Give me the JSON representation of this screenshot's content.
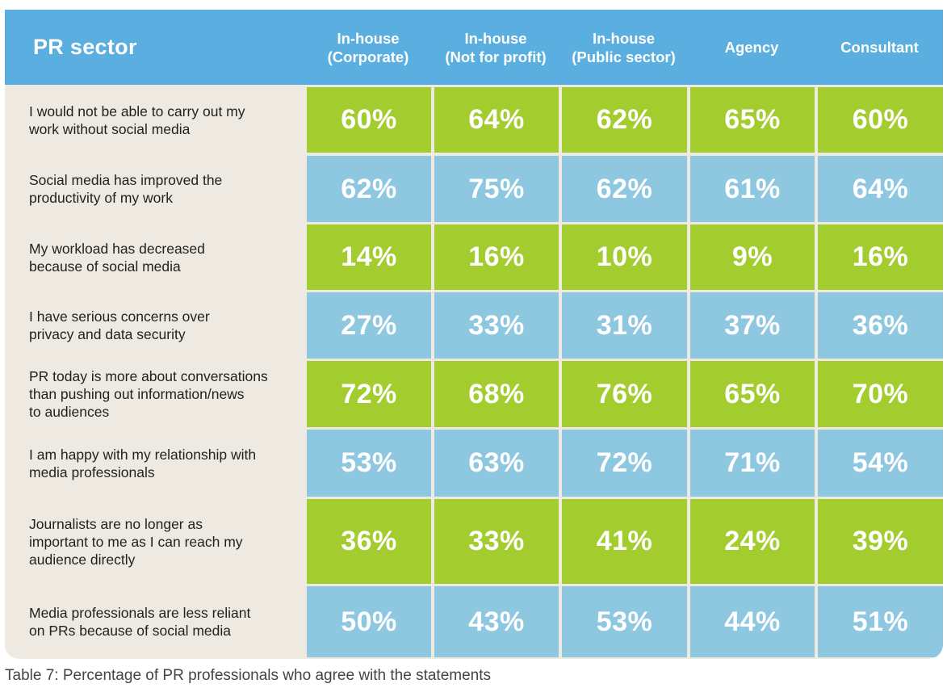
{
  "header": {
    "title": "PR sector",
    "columns": [
      "In-house\n(Corporate)",
      "In-house\n(Not for profit)",
      "In-house\n(Public sector)",
      "Agency",
      "Consultant"
    ]
  },
  "caption": "Table 7: Percentage of PR professionals who agree with the statements",
  "colors": {
    "header": "#5aaee0",
    "green_row": "#a3cd2f",
    "blue_row": "#8ec7e0",
    "statement_bg": "#eeeae1"
  },
  "chart_data": {
    "type": "table",
    "title": "",
    "row_header": "PR sector",
    "columns": [
      "In-house (Corporate)",
      "In-house (Not for profit)",
      "In-house (Public sector)",
      "Agency",
      "Consultant"
    ],
    "rows": [
      {
        "statement": "I would not be able to carry out my\nwork without social media",
        "values": [
          "60%",
          "64%",
          "62%",
          "65%",
          "60%"
        ],
        "style": "green"
      },
      {
        "statement": "Social media has improved the\nproductivity of my work",
        "values": [
          "62%",
          "75%",
          "62%",
          "61%",
          "64%"
        ],
        "style": "blue"
      },
      {
        "statement": "My workload has decreased\nbecause of social media",
        "values": [
          "14%",
          "16%",
          "10%",
          "9%",
          "16%"
        ],
        "style": "green"
      },
      {
        "statement": "I have serious concerns over\nprivacy and data security",
        "values": [
          "27%",
          "33%",
          "31%",
          "37%",
          "36%"
        ],
        "style": "blue"
      },
      {
        "statement": "PR today is more about conversations\nthan pushing out information/news\nto audiences",
        "values": [
          "72%",
          "68%",
          "76%",
          "65%",
          "70%"
        ],
        "style": "green"
      },
      {
        "statement": "I am happy with my relationship with\nmedia professionals",
        "values": [
          "53%",
          "63%",
          "72%",
          "71%",
          "54%"
        ],
        "style": "blue"
      },
      {
        "statement": "Journalists are no longer as\nimportant to me as I can reach my\naudience directly",
        "values": [
          "36%",
          "33%",
          "41%",
          "24%",
          "39%"
        ],
        "style": "green"
      },
      {
        "statement": "Media professionals are less reliant\non PRs because of social media",
        "values": [
          "50%",
          "43%",
          "53%",
          "44%",
          "51%"
        ],
        "style": "blue"
      }
    ]
  }
}
